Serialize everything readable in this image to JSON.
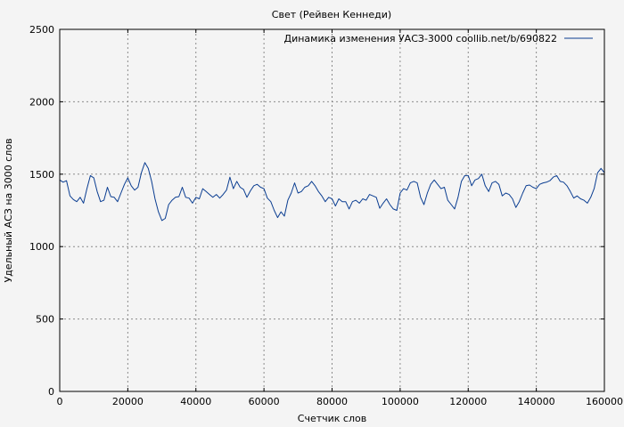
{
  "chart_data": {
    "type": "line",
    "title": "Свет (Рейвен Кеннеди)",
    "xlabel": "Счетчик слов",
    "ylabel": "Удельный АСЗ на 3000 слов",
    "xlim": [
      0,
      160000
    ],
    "ylim": [
      0,
      2500
    ],
    "xticks": [
      0,
      20000,
      40000,
      60000,
      80000,
      100000,
      120000,
      140000,
      160000
    ],
    "yticks": [
      0,
      500,
      1000,
      1500,
      2000,
      2500
    ],
    "grid": true,
    "legend_position": "top-right",
    "series": [
      {
        "name": "Динамика изменения УАСЗ-3000 coollib.net/b/690822",
        "color": "#0a3d91",
        "x": [
          0,
          1000,
          2000,
          3000,
          4000,
          5000,
          6000,
          7000,
          8000,
          9000,
          10000,
          11000,
          12000,
          13000,
          14000,
          15000,
          16000,
          17000,
          18000,
          19000,
          20000,
          21000,
          22000,
          23000,
          24000,
          25000,
          26000,
          27000,
          28000,
          29000,
          30000,
          31000,
          32000,
          33000,
          34000,
          35000,
          36000,
          37000,
          38000,
          39000,
          40000,
          41000,
          42000,
          43000,
          44000,
          45000,
          46000,
          47000,
          48000,
          49000,
          50000,
          51000,
          52000,
          53000,
          54000,
          55000,
          56000,
          57000,
          58000,
          59000,
          60000,
          61000,
          62000,
          63000,
          64000,
          65000,
          66000,
          67000,
          68000,
          69000,
          70000,
          71000,
          72000,
          73000,
          74000,
          75000,
          76000,
          77000,
          78000,
          79000,
          80000,
          81000,
          82000,
          83000,
          84000,
          85000,
          86000,
          87000,
          88000,
          89000,
          90000,
          91000,
          92000,
          93000,
          94000,
          95000,
          96000,
          97000,
          98000,
          99000,
          100000,
          101000,
          102000,
          103000,
          104000,
          105000,
          106000,
          107000,
          108000,
          109000,
          110000,
          111000,
          112000,
          113000,
          114000,
          115000,
          116000,
          117000,
          118000,
          119000,
          120000,
          121000,
          122000,
          123000,
          124000,
          125000,
          126000,
          127000,
          128000,
          129000,
          130000,
          131000,
          132000,
          133000,
          134000,
          135000,
          136000,
          137000,
          138000,
          139000,
          140000,
          141000,
          142000,
          143000,
          144000,
          145000,
          146000,
          147000,
          148000,
          149000,
          150000,
          151000,
          152000,
          153000,
          154000,
          155000,
          156000,
          157000,
          158000,
          159000,
          160000
        ],
        "y": [
          1460,
          1445,
          1455,
          1350,
          1325,
          1310,
          1340,
          1300,
          1400,
          1490,
          1475,
          1380,
          1310,
          1320,
          1410,
          1345,
          1340,
          1310,
          1370,
          1430,
          1475,
          1420,
          1390,
          1410,
          1510,
          1580,
          1540,
          1450,
          1330,
          1240,
          1180,
          1195,
          1290,
          1320,
          1340,
          1345,
          1410,
          1340,
          1335,
          1300,
          1340,
          1330,
          1400,
          1380,
          1360,
          1340,
          1360,
          1335,
          1360,
          1390,
          1480,
          1400,
          1450,
          1410,
          1395,
          1340,
          1385,
          1420,
          1430,
          1410,
          1400,
          1335,
          1310,
          1250,
          1200,
          1240,
          1210,
          1320,
          1370,
          1440,
          1370,
          1380,
          1410,
          1420,
          1450,
          1420,
          1380,
          1350,
          1310,
          1340,
          1330,
          1280,
          1330,
          1310,
          1310,
          1260,
          1310,
          1320,
          1300,
          1330,
          1320,
          1360,
          1350,
          1340,
          1265,
          1300,
          1330,
          1290,
          1260,
          1250,
          1370,
          1400,
          1390,
          1440,
          1450,
          1440,
          1340,
          1290,
          1370,
          1430,
          1460,
          1430,
          1400,
          1410,
          1320,
          1290,
          1260,
          1340,
          1450,
          1490,
          1490,
          1420,
          1460,
          1470,
          1500,
          1420,
          1380,
          1440,
          1450,
          1430,
          1350,
          1370,
          1360,
          1330,
          1270,
          1310,
          1370,
          1420,
          1425,
          1410,
          1400,
          1430,
          1440,
          1445,
          1455,
          1480,
          1490,
          1450,
          1445,
          1420,
          1380,
          1335,
          1350,
          1330,
          1320,
          1300,
          1340,
          1400,
          1510,
          1540,
          1510
        ]
      }
    ]
  }
}
